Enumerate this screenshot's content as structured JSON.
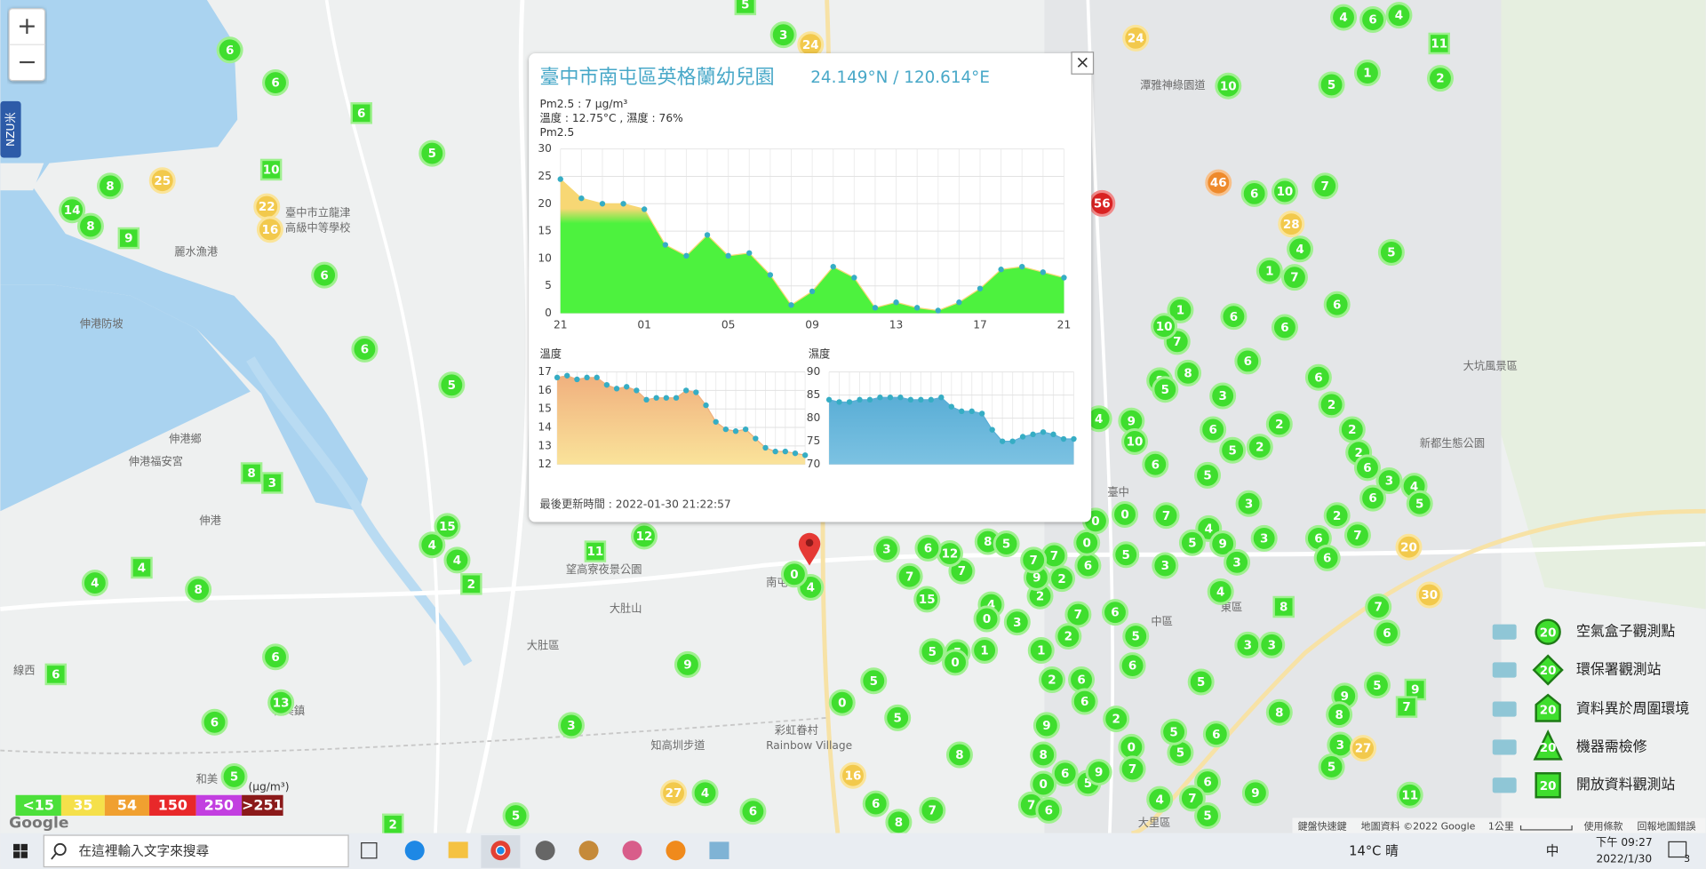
{
  "map": {
    "zoom_in": "+",
    "zoom_out": "−",
    "side_tab": "NZU米",
    "markers": [
      6,
      6,
      5,
      8,
      14,
      8,
      6,
      6,
      5,
      15,
      4,
      4,
      4,
      8,
      6,
      13,
      6,
      5,
      5,
      3,
      9,
      4,
      6,
      12,
      3,
      10,
      5,
      1,
      2,
      4,
      6,
      4,
      7,
      6,
      10,
      4,
      1,
      7,
      5,
      6,
      6,
      1,
      6,
      7,
      10,
      8,
      8,
      5,
      6,
      3,
      6,
      2,
      2,
      9,
      10,
      6,
      5,
      2,
      4,
      6,
      5,
      2,
      2,
      6,
      3,
      4,
      5,
      6,
      3,
      7,
      0,
      2,
      7,
      6,
      3,
      6,
      4,
      9,
      5,
      3,
      3,
      5,
      4,
      6,
      7,
      6,
      5,
      3,
      3,
      6,
      5,
      5,
      9,
      8,
      8,
      3,
      5,
      11,
      9,
      6,
      6,
      5,
      5,
      0,
      7,
      4,
      7,
      5,
      5,
      0,
      5,
      8,
      6,
      8,
      7,
      5,
      5,
      0,
      1,
      3,
      4,
      0,
      2,
      9,
      2,
      7,
      6,
      7,
      2,
      1,
      2,
      6,
      6,
      2,
      9,
      8,
      6,
      5,
      0,
      7,
      6,
      9,
      15,
      7,
      7,
      12,
      3,
      6,
      8,
      5,
      7,
      0,
      0,
      4,
      0,
      24,
      24,
      25,
      22,
      16,
      28,
      20,
      30,
      16,
      27,
      27,
      46,
      56,
      5,
      6,
      10,
      9,
      8,
      3,
      4,
      2,
      11,
      6,
      11,
      8,
      9,
      7,
      2
    ],
    "place_labels": [
      "伸港鄉",
      "伸港福安宮",
      "伸港防坡",
      "麗水漁港",
      "大肚區",
      "彩虹眷村",
      "Rainbow Village",
      "知高圳步道",
      "望高寮夜景公園",
      "臺中",
      "中區",
      "東區",
      "大坑風景區",
      "新都生態公園",
      "大里區",
      "和美鎮",
      "線西",
      "伸港",
      "和美",
      "潭雅神綠園道",
      "臺中市立龍津",
      "高級中等學校",
      "南屯",
      "大肚山"
    ],
    "attribution": [
      "Google",
      "鍵盤快速鍵",
      "地圖資料 ©2022 Google",
      "1公里",
      "使用條款",
      "回報地圖錯誤"
    ]
  },
  "popup": {
    "title": "臺中市南屯區英格蘭幼兒園",
    "coords": "24.149°N / 120.614°E",
    "close": "×",
    "pm_line": "Pm2.5 : 7 μg/m³",
    "weather_line": "溫度 : 12.75°C , 濕度 : 76%",
    "updated": "最後更新時間 : 2022-01-30 21:22:57"
  },
  "chart_data": [
    {
      "type": "area",
      "title": "Pm2.5",
      "categories": [
        "21",
        null,
        null,
        null,
        "01",
        null,
        null,
        null,
        "05",
        null,
        null,
        null,
        "09",
        null,
        null,
        null,
        "13",
        null,
        null,
        null,
        "17",
        null,
        null,
        null,
        "21"
      ],
      "values": [
        24.5,
        21,
        20,
        20,
        19,
        12.5,
        10.5,
        14.3,
        10.5,
        11,
        7,
        1.5,
        4,
        8.5,
        6.5,
        1,
        2,
        1,
        0.5,
        2,
        4.5,
        8,
        8.5,
        7.5,
        6.5
      ],
      "ylim": [
        0,
        30
      ],
      "yticks": [
        0,
        5,
        10,
        15,
        20,
        25,
        30
      ],
      "grid": true,
      "color": "#4df23e",
      "gradient_color": "#f7d774",
      "point_color": "#36adc4"
    },
    {
      "type": "area",
      "title": "溫度",
      "categories": [
        null,
        null,
        null,
        null,
        null,
        null,
        null,
        null,
        null,
        null,
        null,
        null,
        null,
        null,
        null,
        null,
        null,
        null,
        null,
        null,
        null,
        null,
        null,
        null,
        null,
        null
      ],
      "values": [
        16.7,
        16.8,
        16.6,
        16.7,
        16.7,
        16.3,
        16.1,
        16.2,
        16,
        15.5,
        15.6,
        15.6,
        15.6,
        16,
        15.9,
        15.2,
        14.3,
        13.9,
        13.8,
        13.9,
        13.4,
        12.9,
        12.7,
        12.7,
        12.6,
        12.5
      ],
      "ylim": [
        12,
        17
      ],
      "yticks": [
        12,
        13,
        14,
        15,
        16,
        17
      ],
      "grid": true,
      "color": "#fae39a",
      "gradient_color": "#f0b07e",
      "point_color": "#36adc4"
    },
    {
      "type": "area",
      "title": "濕度",
      "categories": [
        null,
        null,
        null,
        null,
        null,
        null,
        null,
        null,
        null,
        null,
        null,
        null,
        null,
        null,
        null,
        null,
        null,
        null,
        null,
        null,
        null,
        null,
        null,
        null,
        null
      ],
      "values": [
        84,
        83.5,
        83.5,
        84,
        84,
        84.5,
        84.5,
        84.5,
        84,
        84,
        84,
        84.5,
        82.5,
        81.5,
        81.5,
        81,
        77.5,
        75,
        75,
        76,
        76.5,
        77,
        76.5,
        75.5,
        75.5
      ],
      "ylim": [
        70,
        90
      ],
      "yticks": [
        70,
        75,
        80,
        85,
        90
      ],
      "grid": true,
      "color": "#7cc2e2",
      "gradient_color": "#5aaed6",
      "point_color": "#36adc4"
    }
  ],
  "aqi_legend": {
    "unit": "(μg/m³)",
    "levels": [
      {
        "label": "<15",
        "color": "#4ce03a"
      },
      {
        "label": "35",
        "color": "#f5e04a"
      },
      {
        "label": "54",
        "color": "#f0a030"
      },
      {
        "label": "150",
        "color": "#e8282a"
      },
      {
        "label": "250",
        "color": "#c23fe0"
      },
      {
        "label": ">251",
        "color": "#8b1a1a"
      }
    ]
  },
  "station_legend": [
    {
      "value": 20,
      "label": "空氣盒子觀測點"
    },
    {
      "value": 20,
      "label": "環保署觀測站"
    },
    {
      "value": 20,
      "label": "資料異於周圍環境"
    },
    {
      "value": 20,
      "label": "機器需檢修"
    },
    {
      "value": 20,
      "label": "開放資料觀測站"
    }
  ],
  "taskbar": {
    "search": "在這裡輸入文字來搜尋",
    "weather": "14°C 晴",
    "ime": "中",
    "time": "下午 09:27",
    "date": "2022/1/30",
    "notifications": 3
  }
}
